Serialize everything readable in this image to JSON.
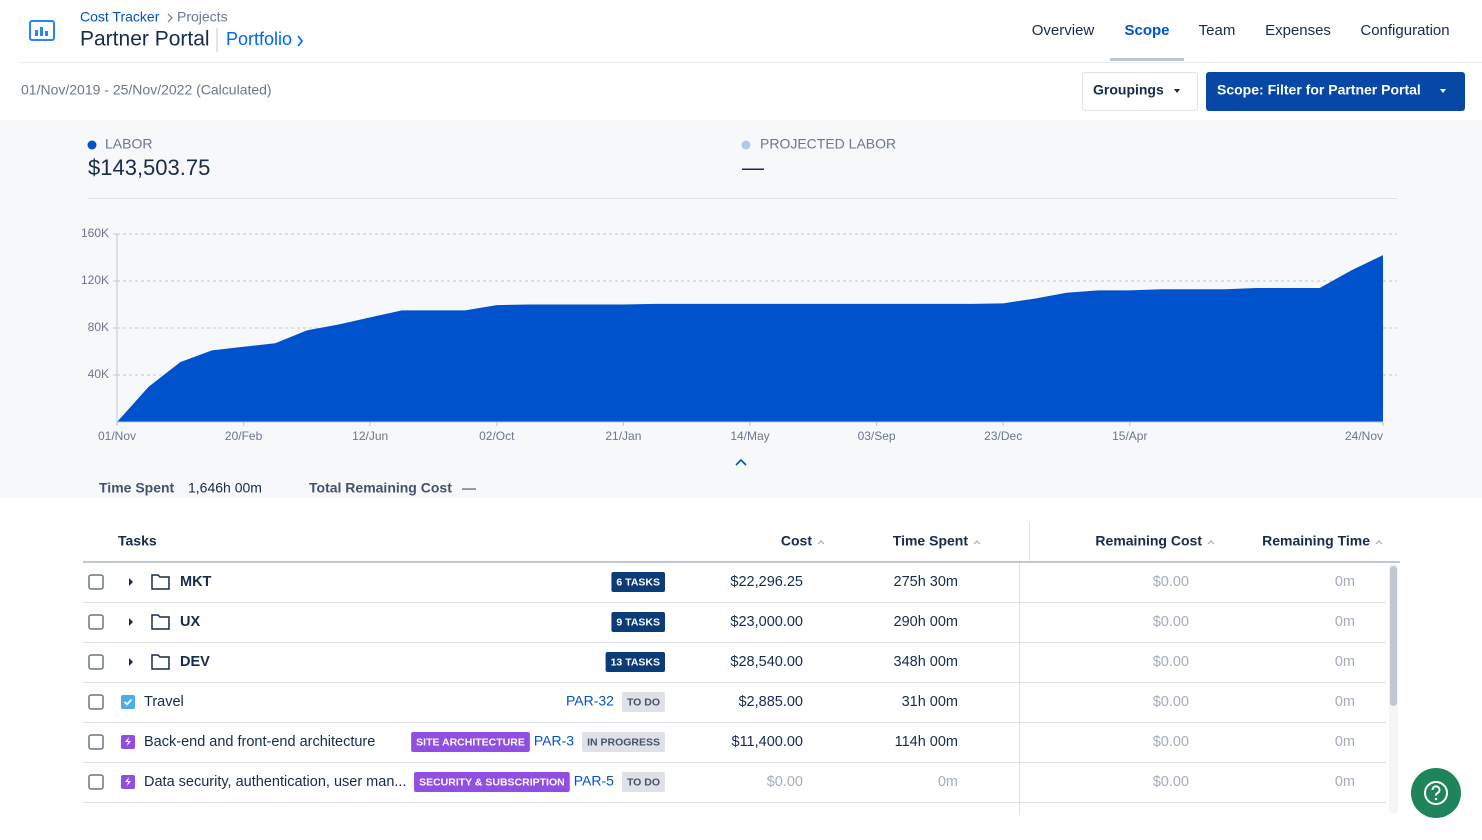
{
  "header": {
    "breadcrumb": [
      "Cost Tracker",
      "Projects"
    ],
    "title": "Partner Portal",
    "portfolio": "Portfolio"
  },
  "nav": {
    "tabs": [
      "Overview",
      "Scope",
      "Team",
      "Expenses",
      "Configuration"
    ],
    "active": 1
  },
  "toolbar": {
    "date_range": "01/Nov/2019 - 25/Nov/2022 (Calculated)",
    "groupings": "Groupings",
    "scope_filter": "Scope: Filter for Partner Portal"
  },
  "summary": {
    "labor_label": "LABOR",
    "labor_value": "$143,503.75",
    "projected_label": "PROJECTED LABOR",
    "projected_value": "—"
  },
  "chart_data": {
    "type": "area",
    "color": "#0052cc",
    "categories": [
      "01/Nov",
      null,
      null,
      null,
      "20/Feb",
      null,
      null,
      null,
      "12/Jun",
      null,
      null,
      null,
      "02/Oct",
      null,
      null,
      null,
      "21/Jan",
      null,
      null,
      null,
      "14/May",
      null,
      null,
      null,
      "03/Sep",
      null,
      null,
      null,
      "23/Dec",
      null,
      null,
      null,
      "15/Apr",
      null,
      null,
      null,
      null,
      null,
      null,
      null,
      "24/Nov"
    ],
    "values": [
      0,
      30000,
      51000,
      61000,
      64000,
      67000,
      78000,
      83000,
      89000,
      95000,
      95000,
      95000,
      99500,
      100000,
      100000,
      100000,
      100000,
      100500,
      100500,
      100500,
      100500,
      100500,
      100500,
      100500,
      100500,
      100500,
      100500,
      100500,
      101000,
      105000,
      110000,
      112000,
      112000,
      113000,
      113000,
      113000,
      114000,
      114000,
      114000,
      129000,
      142000
    ],
    "ylim": [
      0,
      160000
    ],
    "yticks": [
      {
        "value": 40000,
        "label": "40K"
      },
      {
        "value": 80000,
        "label": "80K"
      },
      {
        "value": 120000,
        "label": "120K"
      },
      {
        "value": 160000,
        "label": "160K"
      }
    ],
    "grid": true
  },
  "stats": {
    "time_spent_label": "Time Spent",
    "time_spent_value": "1,646h 00m",
    "remaining_label": "Total Remaining Cost",
    "remaining_value": "—"
  },
  "table": {
    "columns": [
      "Tasks",
      "Cost",
      "Time Spent",
      "Remaining Cost",
      "Remaining Time"
    ],
    "rows": [
      {
        "name": "MKT",
        "tasks": "6 TASKS",
        "cost": "$22,296.25",
        "time": "275h 30m",
        "remaining_cost": "$0.00",
        "remaining_time": "0m",
        "color": "#172b4d"
      },
      {
        "name": "UX",
        "tasks": "9 TASKS",
        "cost": "$23,000.00",
        "time": "290h 00m",
        "remaining_cost": "$0.00",
        "remaining_time": "0m",
        "color": "#172b4d"
      },
      {
        "name": "DEV",
        "tasks": "13 TASKS",
        "cost": "$28,540.00",
        "time": "348h 00m",
        "remaining_cost": "$0.00",
        "remaining_time": "0m",
        "color": "#172b4d"
      },
      {
        "name": "Travel",
        "key": "PAR-32",
        "status": "TO DO",
        "cost": "$2,885.00",
        "time": "31h 00m",
        "remaining_cost": "$0.00",
        "remaining_time": "0m",
        "color": "#172b4d"
      },
      {
        "name": "Back-end and front-end architecture",
        "label": "SITE ARCHITECTURE",
        "key": "PAR-3",
        "status": "IN PROGRESS",
        "cost": "$11,400.00",
        "time": "114h 00m",
        "remaining_cost": "$0.00",
        "remaining_time": "0m",
        "color": "#172b4d"
      },
      {
        "name": "Data security, authentication, user man...",
        "label": "SECURITY & SUBSCRIPTION",
        "key": "PAR-5",
        "status": "TO DO",
        "cost": "$0.00",
        "time": "0m",
        "remaining_cost": "$0.00",
        "remaining_time": "0m",
        "color": "#a5adba"
      }
    ]
  }
}
